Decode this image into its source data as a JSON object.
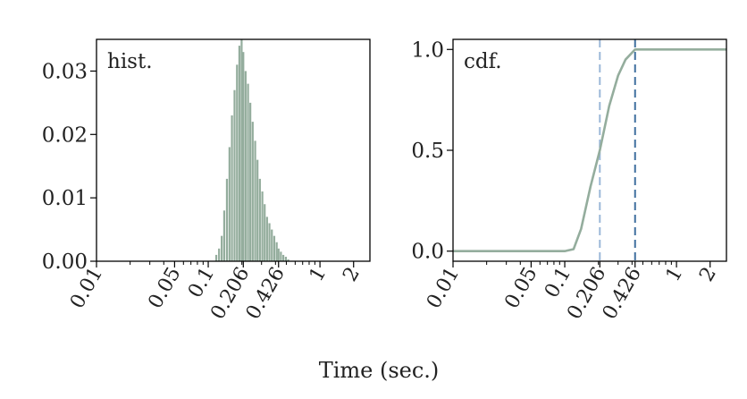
{
  "figure": {
    "shared_xlabel": "Time (sec.)"
  },
  "chart_data": [
    {
      "type": "bar",
      "panel_label": "hist.",
      "xscale": "log",
      "xlim": [
        0.01,
        2.8
      ],
      "ylim": [
        0,
        0.035
      ],
      "x_ticks": [
        0.01,
        0.05,
        0.1,
        0.206,
        0.426,
        1,
        2
      ],
      "x_tick_labels": [
        "0.01",
        "0.05",
        "0.1",
        "0.206",
        "0.426",
        "1",
        "2"
      ],
      "y_ticks": [
        0,
        0.01,
        0.02,
        0.03
      ],
      "y_tick_labels": [
        "0.00",
        "0.01",
        "0.02",
        "0.03"
      ],
      "bar_color": "#94ad9d",
      "x": [
        0.118,
        0.125,
        0.132,
        0.139,
        0.147,
        0.155,
        0.163,
        0.172,
        0.181,
        0.19,
        0.199,
        0.206,
        0.216,
        0.227,
        0.238,
        0.25,
        0.263,
        0.276,
        0.29,
        0.305,
        0.32,
        0.336,
        0.353,
        0.371,
        0.39,
        0.41,
        0.426,
        0.447,
        0.47,
        0.495,
        0.52
      ],
      "values": [
        0.001,
        0.002,
        0.004,
        0.008,
        0.013,
        0.018,
        0.023,
        0.027,
        0.031,
        0.034,
        0.035,
        0.033,
        0.03,
        0.028,
        0.025,
        0.022,
        0.019,
        0.016,
        0.013,
        0.011,
        0.009,
        0.007,
        0.006,
        0.005,
        0.004,
        0.003,
        0.002,
        0.0015,
        0.001,
        0.0007,
        0.0003
      ]
    },
    {
      "type": "line",
      "panel_label": "cdf.",
      "xscale": "log",
      "xlim": [
        0.01,
        2.8
      ],
      "ylim": [
        -0.05,
        1.05
      ],
      "x_ticks": [
        0.01,
        0.05,
        0.1,
        0.206,
        0.426,
        1,
        2
      ],
      "x_tick_labels": [
        "0.01",
        "0.05",
        "0.1",
        "0.206",
        "0.426",
        "1",
        "2"
      ],
      "y_ticks": [
        0,
        0.5,
        1.0
      ],
      "y_tick_labels": [
        "0.0",
        "0.5",
        "1.0"
      ],
      "line_color": "#94ad9d",
      "x": [
        0.01,
        0.05,
        0.1,
        0.12,
        0.14,
        0.17,
        0.206,
        0.25,
        0.3,
        0.35,
        0.426,
        0.6,
        1,
        2.8
      ],
      "y": [
        0,
        0,
        0,
        0.01,
        0.11,
        0.32,
        0.5,
        0.72,
        0.87,
        0.95,
        1.0,
        1.0,
        1.0,
        1.0
      ],
      "vlines": [
        {
          "x": 0.206,
          "color": "#9bb8d8",
          "style": "dashed"
        },
        {
          "x": 0.426,
          "color": "#3f6f9f",
          "style": "dashed"
        }
      ]
    }
  ]
}
